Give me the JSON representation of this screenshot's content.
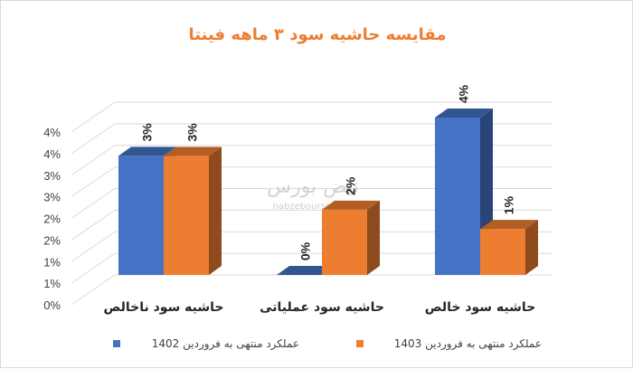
{
  "chart_data": {
    "type": "bar",
    "title": "مقایسه حاشیه سود ۳ ماهه فینتا",
    "categories": [
      "حاشیه سود ناخالص",
      "حاشیه سود عملیاتی",
      "حاشیه سود خالص"
    ],
    "series": [
      {
        "name": "عملکرد منتهی به فروردین 1402",
        "values": [
          0.031,
          0.0,
          0.041
        ],
        "labels": [
          "3%",
          "0%",
          "4%"
        ],
        "color": "#4472c4"
      },
      {
        "name": "عملکرد منتهی به فروردین 1403",
        "values": [
          0.031,
          0.017,
          0.012
        ],
        "labels": [
          "3%",
          "2%",
          "1%"
        ],
        "color": "#ed7d31"
      }
    ],
    "y_tick_labels": [
      "0%",
      "1%",
      "1%",
      "2%",
      "2%",
      "3%",
      "3%",
      "4%",
      "4%"
    ],
    "ylim": [
      0,
      0.045
    ],
    "grid": true,
    "legend_position": "bottom",
    "watermark": {
      "text": "نبض بورس",
      "url": "nabzebourse.com"
    }
  }
}
